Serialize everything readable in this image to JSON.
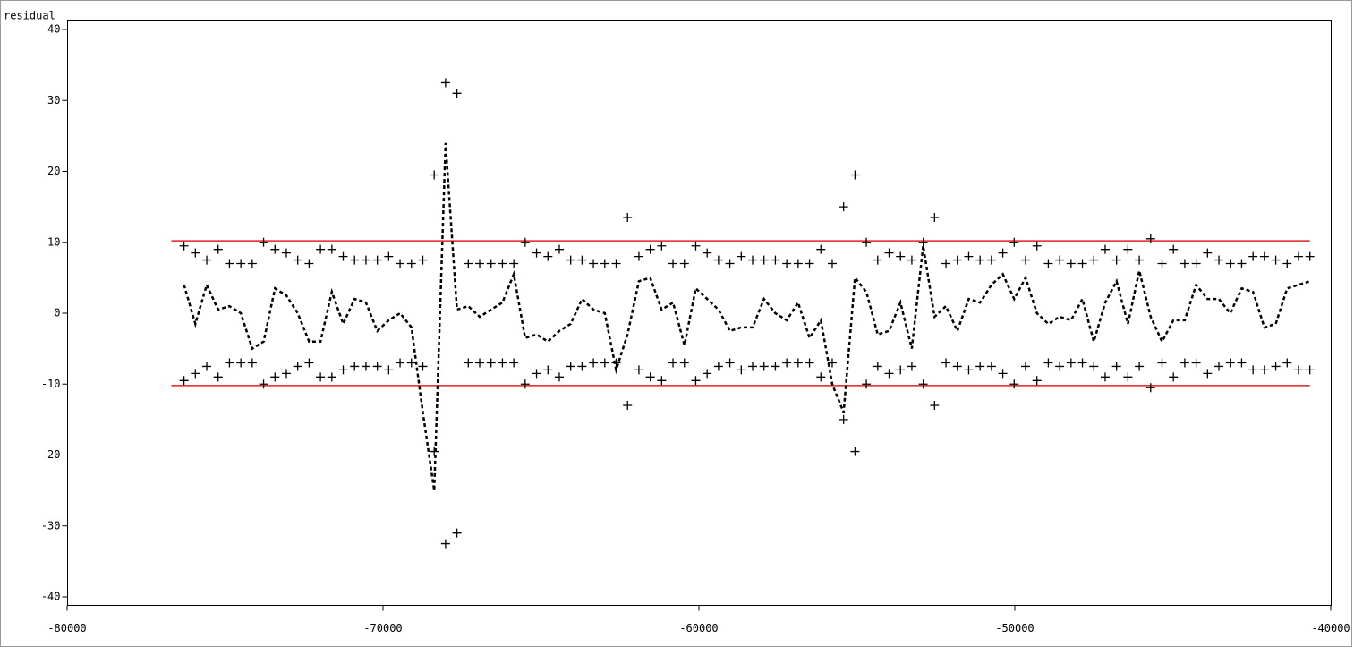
{
  "chart_data": {
    "type": "line",
    "ylabel": "residual",
    "x": [
      -76300,
      -75940,
      -75580,
      -75220,
      -74860,
      -74500,
      -74140,
      -73780,
      -73420,
      -73060,
      -72700,
      -72340,
      -71980,
      -71620,
      -71260,
      -70900,
      -70540,
      -70180,
      -69820,
      -69460,
      -69100,
      -68740,
      -68380,
      -68020,
      -67660,
      -67300,
      -66940,
      -66580,
      -66220,
      -65860,
      -65500,
      -65140,
      -64780,
      -64420,
      -64060,
      -63700,
      -63340,
      -62980,
      -62620,
      -62260,
      -61900,
      -61540,
      -61180,
      -60820,
      -60460,
      -60100,
      -59740,
      -59380,
      -59020,
      -58660,
      -58300,
      -57940,
      -57580,
      -57220,
      -56860,
      -56500,
      -56140,
      -55780,
      -55420,
      -55060,
      -54700,
      -54340,
      -53980,
      -53620,
      -53260,
      -52900,
      -52540,
      -52180,
      -51820,
      -51460,
      -51100,
      -50740,
      -50380,
      -50020,
      -49660,
      -49300,
      -48940,
      -48580,
      -48220,
      -47860,
      -47500,
      -47140,
      -46780,
      -46420,
      -46060,
      -45700,
      -45340,
      -44980,
      -44620,
      -44260,
      -43900,
      -43540,
      -43180,
      -42820,
      -42460,
      -42100,
      -41740,
      -41380,
      -41020,
      -40660
    ],
    "series": [
      {
        "style": "dashed",
        "color": "#000000",
        "values": [
          4,
          -1.5,
          4,
          0.5,
          1,
          0,
          -5,
          -4,
          3.5,
          2.5,
          0,
          -4,
          -4,
          3,
          -1.5,
          2,
          1.5,
          -2.5,
          -1,
          0,
          -2,
          -14,
          -25,
          24,
          0.5,
          1,
          -0.5,
          0.5,
          1.5,
          5.5,
          -3.5,
          -3,
          -4,
          -2.5,
          -1.5,
          2,
          0.5,
          0,
          -8,
          -3,
          4.5,
          5,
          0.5,
          1.5,
          -4.5,
          3.5,
          2,
          0.5,
          -2.5,
          -2,
          -2,
          2,
          0,
          -1,
          1.5,
          -3.5,
          -1,
          -10,
          -14,
          5,
          3,
          -3,
          -2.5,
          1.5,
          -5,
          9.5,
          -0.5,
          1,
          -2.5,
          2,
          1.5,
          4,
          5.5,
          2,
          5,
          0,
          -1.5,
          -0.5,
          -1,
          2,
          -4,
          1.5,
          4.5,
          -1.5,
          6,
          -0.5,
          -4,
          -1,
          -1,
          4,
          2,
          2,
          0,
          3.5,
          3,
          -2,
          -1.5,
          3.5,
          4,
          4.5
        ]
      },
      {
        "style": "marker",
        "color": "#000000",
        "values": [
          9.5,
          8.5,
          7.5,
          9,
          7,
          7,
          7,
          10,
          9,
          8.5,
          7.5,
          7,
          9,
          9,
          8,
          7.5,
          7.5,
          7.5,
          8,
          7,
          7,
          7.5,
          19.5,
          32.5,
          31,
          7,
          7,
          7,
          7,
          7,
          10,
          8.5,
          8,
          9,
          7.5,
          7.5,
          7,
          7,
          7,
          13.5,
          8,
          9,
          9.5,
          7,
          7,
          9.5,
          8.5,
          7.5,
          7,
          8,
          7.5,
          7.5,
          7.5,
          7,
          7,
          7,
          9,
          7,
          15,
          19.5,
          10,
          7.5,
          8.5,
          8,
          7.5,
          10,
          13.5,
          7,
          7.5,
          8,
          7.5,
          7.5,
          8.5,
          10,
          7.5,
          9.5,
          7,
          7.5,
          7,
          7,
          7.5,
          9,
          7.5,
          9,
          7.5,
          10.5,
          7,
          9,
          7,
          7,
          8.5,
          7.5,
          7,
          7,
          8,
          8,
          7.5,
          7,
          8,
          8
        ]
      },
      {
        "style": "marker",
        "color": "#000000",
        "values": [
          -9.5,
          -8.5,
          -7.5,
          -9,
          -7,
          -7,
          -7,
          -10,
          -9,
          -8.5,
          -7.5,
          -7,
          -9,
          -9,
          -8,
          -7.5,
          -7.5,
          -7.5,
          -8,
          -7,
          -7,
          -7.5,
          -19.5,
          -32.5,
          -31,
          -7,
          -7,
          -7,
          -7,
          -7,
          -10,
          -8.5,
          -8,
          -9,
          -7.5,
          -7.5,
          -7,
          -7,
          -7,
          -13,
          -8,
          -9,
          -9.5,
          -7,
          -7,
          -9.5,
          -8.5,
          -7.5,
          -7,
          -8,
          -7.5,
          -7.5,
          -7.5,
          -7,
          -7,
          -7,
          -9,
          -7,
          -15,
          -19.5,
          -10,
          -7.5,
          -8.5,
          -8,
          -7.5,
          -10,
          -13,
          -7,
          -7.5,
          -8,
          -7.5,
          -7.5,
          -8.5,
          -10,
          -7.5,
          -9.5,
          -7,
          -7.5,
          -7,
          -7,
          -7.5,
          -9,
          -7.5,
          -9,
          -7.5,
          -10.5,
          -7,
          -9,
          -7,
          -7,
          -8.5,
          -7.5,
          -7,
          -7,
          -8,
          -8,
          -7.5,
          -7,
          -8,
          -8
        ]
      }
    ],
    "reference_lines": [
      {
        "value": 10.2,
        "color": "#e02020",
        "xrange": [
          -76700,
          -40660
        ]
      },
      {
        "value": -10.2,
        "color": "#e02020",
        "xrange": [
          -76700,
          -40660
        ]
      }
    ],
    "xlim": [
      -80000,
      -40000
    ],
    "xticks": [
      -80000,
      -70000,
      -60000,
      -50000,
      -40000
    ],
    "ylim": [
      -40,
      40
    ],
    "yticks": [
      -40,
      -30,
      -20,
      -10,
      0,
      10,
      20,
      30,
      40
    ]
  }
}
